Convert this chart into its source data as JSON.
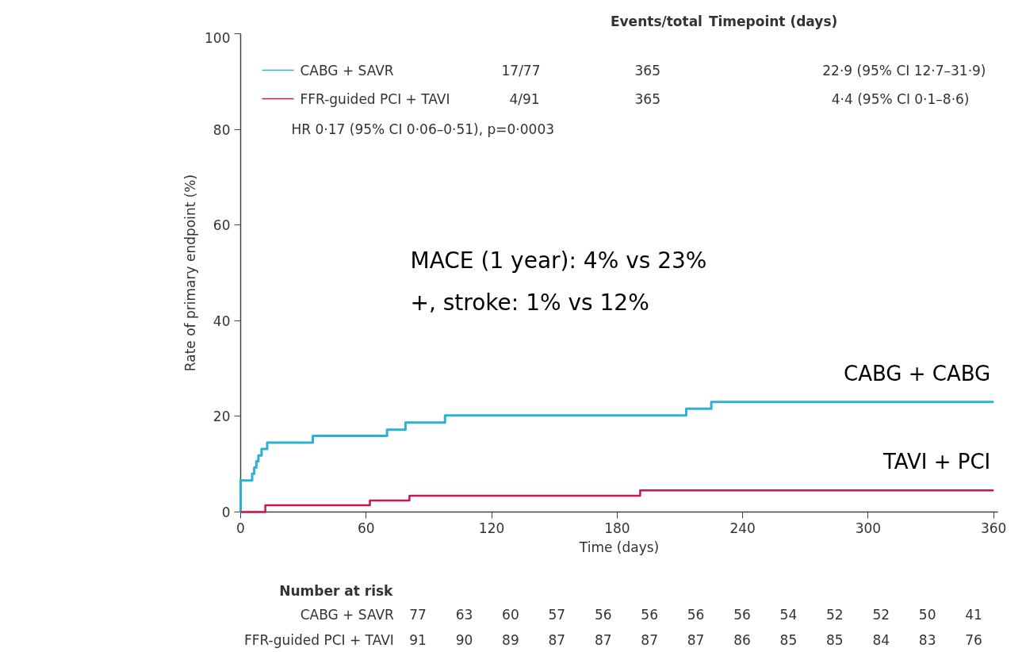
{
  "chart_data": {
    "type": "step",
    "xlabel": "Time (days)",
    "ylabel": "Rate of primary endpoint (%)",
    "xlim": [
      0,
      362
    ],
    "ylim": [
      0,
      100
    ],
    "xticks": [
      0,
      60,
      120,
      180,
      240,
      300,
      360
    ],
    "yticks": [
      0,
      20,
      40,
      60,
      80,
      100
    ],
    "grid": false,
    "legend": "top left",
    "line_style": "solid",
    "marker": "none",
    "series": [
      {
        "name": "CABG + SAVR",
        "color": "#2eb0d2",
        "x": [
          0,
          0,
          5.5,
          6.5,
          7.5,
          8.5,
          10,
          12.7,
          34.5,
          70,
          78.8,
          97.7,
          213,
          225,
          360
        ],
        "values": [
          0,
          6.6,
          8.0,
          9.3,
          10.6,
          11.8,
          13.2,
          14.5,
          15.9,
          17.2,
          18.7,
          20.2,
          21.6,
          23.0,
          23.0
        ]
      },
      {
        "name": "FFR-guided PCI + TAVI",
        "color": "#c8174f",
        "x": [
          0,
          11.8,
          61.8,
          80.7,
          191,
          360
        ],
        "values": [
          0,
          1.4,
          2.4,
          3.4,
          4.5,
          4.5
        ]
      }
    ],
    "annotations": [
      "Events/total",
      "Timepoint (days)",
      "17/77",
      "365",
      "22·9 (95% CI 12·7–31·9)",
      "4/91",
      "365",
      "4·4 (95% CI 0·1–8·6)",
      "HR 0·17 (95% CI 0·06–0·51), p=0·0003",
      "MACE (1 year): 4% vs 23%",
      "+, stroke: 1% vs 12%",
      {
        "text": "CABG + CABG",
        "x": 360,
        "y": 23.0
      },
      {
        "text": "TAVI + PCI",
        "x": 360,
        "y": 4.5
      },
      "Number at risk",
      "CABG + SAVR",
      "77",
      "63",
      "60",
      "57",
      "56",
      "56",
      "56",
      "56",
      "54",
      "52",
      "52",
      "50",
      "41",
      "FFR-guided PCI + TAVI",
      "91",
      "90",
      "89",
      "87",
      "87",
      "87",
      "87",
      "86",
      "85",
      "85",
      "84",
      "83",
      "76"
    ]
  }
}
